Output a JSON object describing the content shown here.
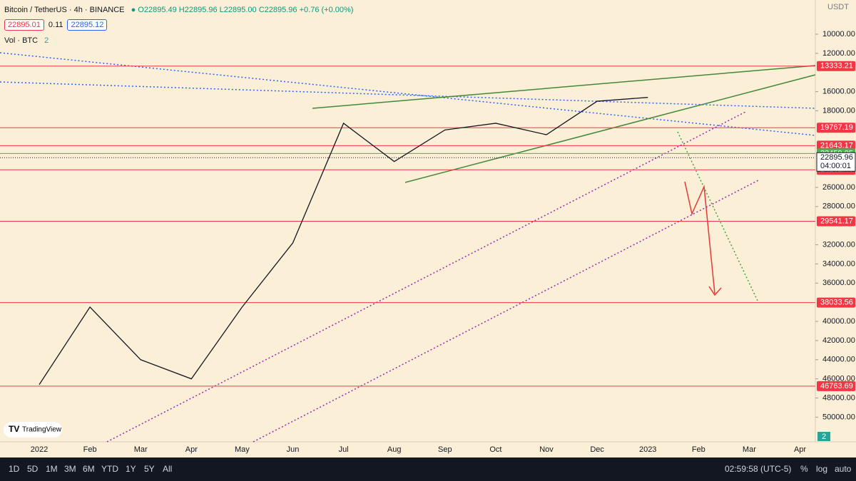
{
  "header": {
    "symbol": "Bitcoin / TetherUS · 4h · BINANCE",
    "ohlc": "O22895.49 H22895.96 L22895.00 C22895.96 +0.76 (+0.00%)",
    "bid": "22895.01",
    "spread": "0.11",
    "ask": "22895.12",
    "volume_label": "Vol · BTC",
    "volume_value": "2"
  },
  "chart_data": {
    "type": "line",
    "categories": [
      "2022",
      "Feb",
      "Mar",
      "Apr",
      "May",
      "Jun",
      "Jul",
      "Aug",
      "Sep",
      "Oct",
      "Nov",
      "Dec",
      "2023",
      "Feb",
      "Mar",
      "Apr"
    ],
    "values": [
      46600,
      38500,
      44000,
      46000,
      38500,
      31800,
      19300,
      23300,
      20000,
      19300,
      20500,
      17000,
      16600,
      null,
      null,
      null
    ],
    "color": "#131722",
    "axis_unit": "USDT",
    "ylim": [
      52576,
      6427
    ],
    "inverted": true,
    "yticks": [
      {
        "value": 10000,
        "label": "10000.00"
      },
      {
        "value": 12000,
        "label": "12000.00"
      },
      {
        "value": 16000,
        "label": "16000.00"
      },
      {
        "value": 18000,
        "label": "18000.00"
      },
      {
        "value": 26000,
        "label": "26000.00"
      },
      {
        "value": 28000,
        "label": "28000.00"
      },
      {
        "value": 32000,
        "label": "32000.00"
      },
      {
        "value": 34000,
        "label": "34000.00"
      },
      {
        "value": 36000,
        "label": "36000.00"
      },
      {
        "value": 40000,
        "label": "40000.00"
      },
      {
        "value": 42000,
        "label": "42000.00"
      },
      {
        "value": 44000,
        "label": "44000.00"
      },
      {
        "value": 46000,
        "label": "46000.00"
      },
      {
        "value": 48000,
        "label": "48000.00"
      },
      {
        "value": 50000,
        "label": "50000.00"
      }
    ],
    "levels": [
      13333.21,
      19767.19,
      21643.17,
      24162.46,
      29541.17,
      38033.56,
      46763.69
    ],
    "level_color": "#f23645",
    "support": 22459.05,
    "support_color": "#4caf50",
    "last_price": 22895.96,
    "countdown": "04:00:01"
  },
  "logo": "TradingView",
  "badge": "2",
  "toolbar": {
    "ranges": [
      "1D",
      "5D",
      "1M",
      "3M",
      "6M",
      "YTD",
      "1Y",
      "5Y",
      "All"
    ],
    "clock": "02:59:58 (UTC-5)",
    "percent": "%",
    "log": "log",
    "auto": "auto"
  }
}
